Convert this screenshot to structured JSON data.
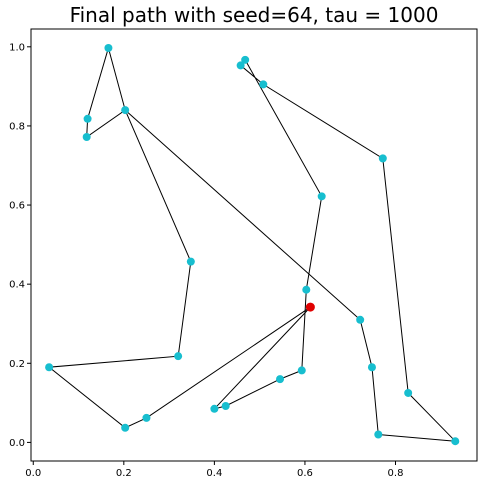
{
  "chart_data": {
    "type": "scatter",
    "title": "Final path with seed=64, tau = 1000",
    "xlabel": "",
    "ylabel": "",
    "xlim": [
      -0.005,
      0.98
    ],
    "ylim": [
      -0.047,
      1.045
    ],
    "xticks": [
      0.0,
      0.2,
      0.4,
      0.6,
      0.8
    ],
    "xtick_labels": [
      "0.0",
      "0.2",
      "0.4",
      "0.6",
      "0.8"
    ],
    "yticks": [
      0.0,
      0.2,
      0.4,
      0.6,
      0.8,
      1.0
    ],
    "ytick_labels": [
      "0.0",
      "0.2",
      "0.4",
      "0.6",
      "0.8",
      "1.0"
    ],
    "grid": false,
    "colors": {
      "points": "#17becf",
      "start": "#e00000",
      "path": "#000000"
    },
    "path": [
      [
        0.612,
        0.342
      ],
      [
        0.4,
        0.085
      ],
      [
        0.425,
        0.092
      ],
      [
        0.545,
        0.16
      ],
      [
        0.593,
        0.182
      ],
      [
        0.603,
        0.386
      ],
      [
        0.637,
        0.622
      ],
      [
        0.468,
        0.967
      ],
      [
        0.458,
        0.953
      ],
      [
        0.508,
        0.905
      ],
      [
        0.772,
        0.718
      ],
      [
        0.828,
        0.125
      ],
      [
        0.932,
        0.003
      ],
      [
        0.762,
        0.02
      ],
      [
        0.748,
        0.19
      ],
      [
        0.722,
        0.31
      ],
      [
        0.203,
        0.84
      ],
      [
        0.118,
        0.772
      ],
      [
        0.12,
        0.818
      ],
      [
        0.166,
        0.997
      ],
      [
        0.203,
        0.84
      ],
      [
        0.348,
        0.457
      ],
      [
        0.32,
        0.218
      ],
      [
        0.035,
        0.19
      ],
      [
        0.203,
        0.037
      ],
      [
        0.25,
        0.062
      ],
      [
        0.612,
        0.342
      ]
    ],
    "start_point": [
      0.612,
      0.342
    ]
  }
}
